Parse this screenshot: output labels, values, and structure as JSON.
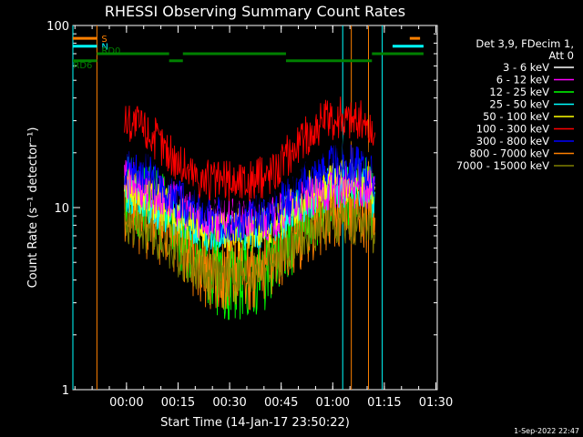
{
  "chart_data": {
    "type": "line",
    "title": "RHESSI Observing Summary Count Rates",
    "xlabel": "Start Time (14-Jan-17 23:50:22)",
    "ylabel": "Count Rate (s⁻¹ detector⁻¹)",
    "y_scale": "log",
    "ylim": [
      1,
      100
    ],
    "y_ticks": [
      {
        "value": 1,
        "label": "1"
      },
      {
        "value": 10,
        "label": "10"
      },
      {
        "value": 100,
        "label": "100"
      }
    ],
    "x_unit": "minutes since 23:50:22",
    "xlim": [
      -6,
      100
    ],
    "x_ticks": [
      {
        "value": 9.6,
        "label": "00:00"
      },
      {
        "value": 24.6,
        "label": "00:15"
      },
      {
        "value": 39.6,
        "label": "00:30"
      },
      {
        "value": 54.6,
        "label": "00:45"
      },
      {
        "value": 69.6,
        "label": "01:00"
      },
      {
        "value": 84.6,
        "label": "01:15"
      },
      {
        "value": 99.6,
        "label": "01:30"
      }
    ],
    "grid": false,
    "legend_placement": "right",
    "legend_header": [
      "Det 3,9, FDecim 1,",
      "Att 0"
    ],
    "x_samples": [
      10,
      14,
      18,
      22,
      26,
      30,
      34,
      38,
      42,
      46,
      50,
      54,
      58,
      62,
      66,
      70,
      74,
      78,
      82
    ],
    "series": [
      {
        "name": "3 - 6 keV",
        "color": "#000000",
        "values": [
          22,
          21,
          19,
          17,
          15,
          13,
          12,
          12,
          12,
          12,
          12,
          14,
          16,
          19,
          22,
          24,
          25,
          25,
          20
        ]
      },
      {
        "name": "6 - 12 keV",
        "color": "#ff00ff",
        "values": [
          14,
          13,
          12,
          11,
          10,
          9,
          8.5,
          8.5,
          8.5,
          8.5,
          8.5,
          9,
          10,
          11,
          12,
          13,
          13,
          13,
          12
        ]
      },
      {
        "name": "12 - 25 keV",
        "color": "#00ff00",
        "values": [
          12,
          11,
          10,
          9,
          7,
          5.5,
          4.5,
          4,
          4,
          4,
          4.5,
          5.5,
          7,
          9,
          10,
          11,
          12,
          12,
          10
        ]
      },
      {
        "name": "25 - 50 keV",
        "color": "#00ffff",
        "values": [
          12,
          11,
          10,
          9.5,
          8.5,
          8,
          7.5,
          7.5,
          7.5,
          7.5,
          8,
          8.5,
          9.5,
          11,
          12,
          13,
          13,
          13,
          11
        ]
      },
      {
        "name": "50 - 100 keV",
        "color": "#ffff00",
        "values": [
          13,
          12,
          11,
          10,
          9,
          8,
          7.5,
          7.5,
          7.5,
          7.5,
          8,
          9,
          10,
          12,
          13,
          14,
          14,
          14,
          12
        ]
      },
      {
        "name": "100 - 300 keV",
        "color": "#ff0000",
        "values": [
          30,
          28,
          24,
          20,
          17,
          15,
          14,
          14,
          14,
          14,
          15,
          17,
          21,
          25,
          29,
          31,
          31,
          30,
          24
        ]
      },
      {
        "name": "300 - 800 keV",
        "color": "#0000ff",
        "values": [
          17,
          16,
          14,
          12,
          10.5,
          9.5,
          9,
          8.5,
          8.5,
          9,
          9.5,
          10.5,
          12,
          14,
          16,
          17,
          17,
          17,
          14
        ]
      },
      {
        "name": "800 - 7000 keV",
        "color": "#ff8000",
        "values": [
          10,
          9,
          8,
          7,
          6,
          5,
          4.5,
          4.5,
          4.5,
          4.5,
          5,
          6,
          7,
          8,
          9,
          10,
          10,
          10,
          8
        ]
      },
      {
        "name": "7000 - 15000 keV",
        "color": "#808000",
        "values": [
          8,
          7.5,
          7,
          6,
          5.2,
          4.6,
          4.2,
          4.2,
          4.2,
          4.2,
          4.6,
          5.2,
          6,
          7,
          7.8,
          8.2,
          8.2,
          8.2,
          7
        ]
      }
    ],
    "annotations": [
      {
        "text": "S",
        "color": "#ff8000",
        "y": 85,
        "segments": [
          [
            -6,
            1
          ],
          [
            92,
            95
          ]
        ]
      },
      {
        "text": "N",
        "color": "#00ffff",
        "y": 77,
        "segments": [
          [
            -6,
            1
          ],
          [
            87,
            96
          ]
        ]
      },
      {
        "text": "RD0",
        "color": "#008000",
        "y": 70,
        "segments": [
          [
            1,
            22
          ],
          [
            26,
            56
          ],
          [
            81,
            96
          ]
        ]
      },
      {
        "text": "RD6",
        "color": "#008000",
        "y": 64,
        "segments": [
          [
            -6,
            1
          ],
          [
            22,
            26
          ],
          [
            56,
            81
          ]
        ]
      }
    ],
    "vertical_markers": [
      {
        "x": -6,
        "color": "#00ffff"
      },
      {
        "x": 1,
        "color": "#ff8000"
      },
      {
        "x": 72.5,
        "color": "#00ffff"
      },
      {
        "x": 75,
        "color": "#ff8000"
      },
      {
        "x": 80,
        "color": "#ff8000"
      },
      {
        "x": 84,
        "color": "#00ffff"
      }
    ]
  },
  "footer": {
    "date": "1-Sep-2022 22:47"
  }
}
